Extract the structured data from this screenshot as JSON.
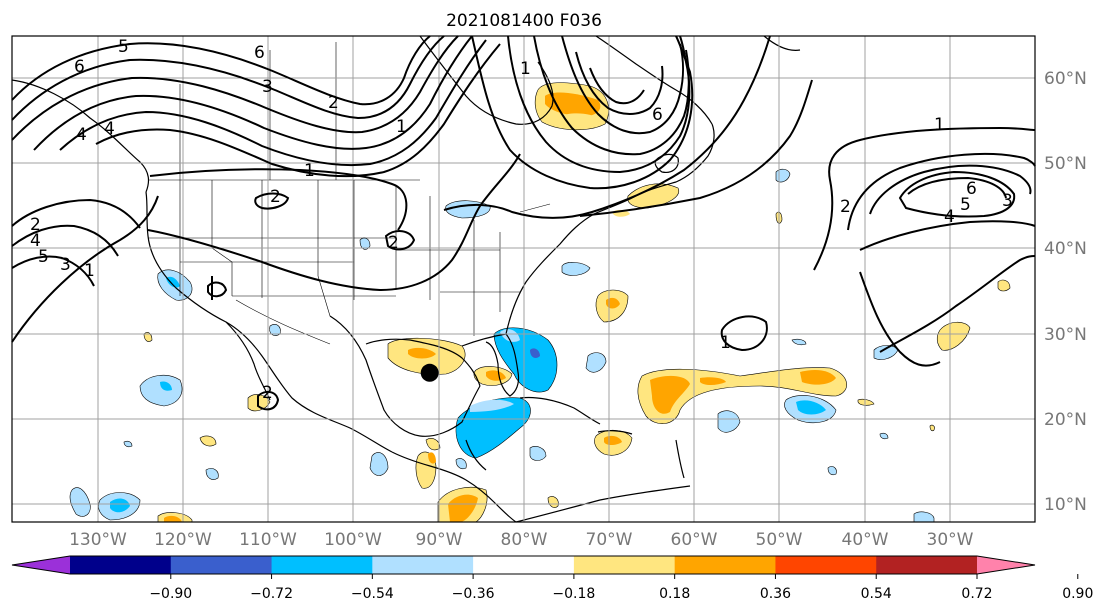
{
  "title": "2021081400 F036",
  "colors": {
    "contour": "#000000",
    "grid": "#a0a0a0",
    "land_border": "#000000"
  },
  "colorbar": {
    "ticks": [
      "−0.90",
      "−0.72",
      "−0.54",
      "−0.36",
      "−0.18",
      "0.18",
      "0.36",
      "0.54",
      "0.72",
      "0.90"
    ],
    "colors": [
      "#9b30d9",
      "#00008b",
      "#3a5fcd",
      "#00bfff",
      "#b0e0ff",
      "#ffffff",
      "#ffe680",
      "#ffa500",
      "#ff4500",
      "#b22222",
      "#ff82ab"
    ]
  },
  "axes": {
    "lon_labels": [
      "130°W",
      "120°W",
      "110°W",
      "100°W",
      "90°W",
      "80°W",
      "70°W",
      "60°W",
      "50°W",
      "40°W",
      "30°W"
    ],
    "lat_labels": [
      "60°N",
      "50°N",
      "40°N",
      "30°N",
      "20°N",
      "10°N"
    ],
    "lon_range": [
      -135,
      -15
    ],
    "lat_range": [
      8,
      65
    ]
  },
  "contour_labels": [
    "6",
    "5",
    "4",
    "3",
    "2",
    "1",
    "1",
    "1",
    "2",
    "2",
    "6",
    "4",
    "2",
    "3",
    "1",
    "5",
    "4",
    "6",
    "1",
    "2",
    "3",
    "4",
    "5",
    "6",
    "2",
    "1"
  ],
  "marker": {
    "name": "storm-center",
    "lon": -86,
    "lat": 25.5
  }
}
